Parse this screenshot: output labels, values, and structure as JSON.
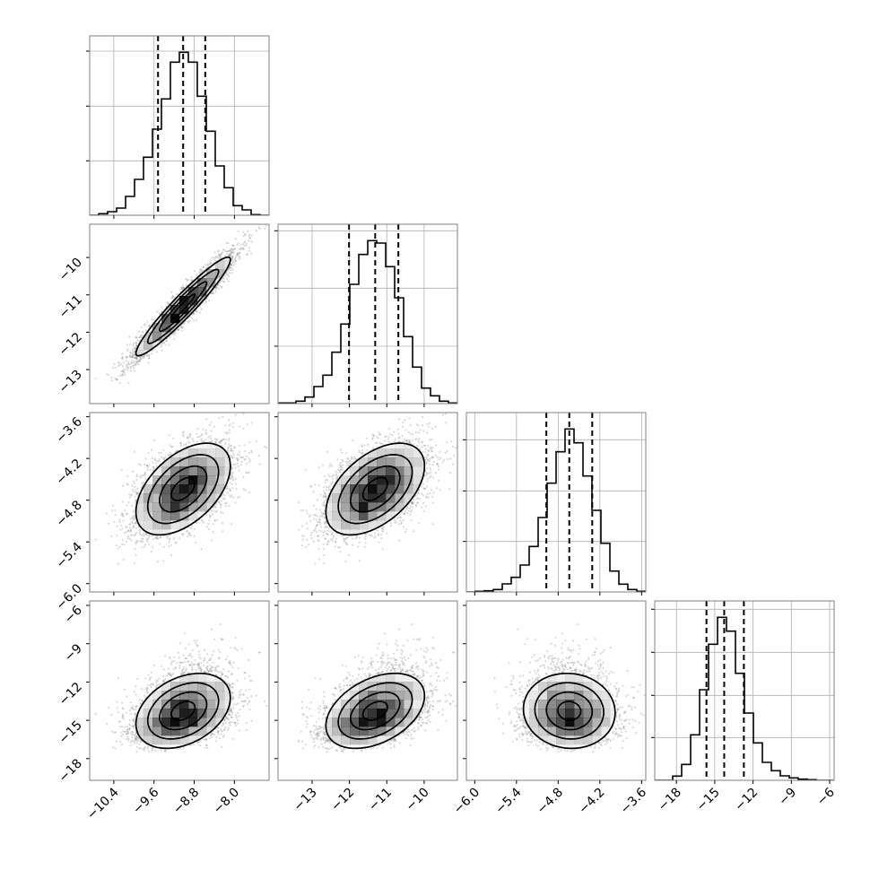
{
  "chart_data": {
    "type": "corner",
    "title": "",
    "n_samples": 4000,
    "hist_ylim": [
      0,
      600
    ],
    "contour_levels_sigma": [
      0.5,
      1.0,
      1.5,
      2.0
    ],
    "quantiles_levels": [
      0.16,
      0.5,
      0.84
    ],
    "correlations": [
      [
        1.0,
        0.95,
        0.5,
        0.35
      ],
      [
        0.95,
        1.0,
        0.5,
        0.4
      ],
      [
        0.5,
        0.5,
        1.0,
        -0.05
      ],
      [
        0.35,
        0.4,
        -0.05,
        1.0
      ]
    ],
    "colors": {
      "hist": "#000000",
      "points": "#808080",
      "density": "#000000",
      "frame": "#808080",
      "grid": "#b0b0b0"
    },
    "parameters": [
      {
        "range": [
          -10.88,
          -7.31
        ],
        "mean": -9.02,
        "std": 0.47,
        "skew": 0,
        "ticks": [
          -10.4,
          -9.6,
          -8.8,
          -8.0
        ],
        "tick_labels": [
          "−10.4",
          "−9.6",
          "−8.8",
          "−8.0"
        ],
        "quantiles": [
          -9.52,
          -9.02,
          -8.58
        ],
        "hist": [
          0,
          5,
          12,
          24,
          63,
          120,
          194,
          288,
          389,
          512,
          545,
          512,
          398,
          281,
          165,
          92,
          32,
          18,
          2,
          0
        ],
        "hist_yticks": [
          182,
          365,
          549
        ]
      },
      {
        "range": [
          -13.91,
          -9.11
        ],
        "mean": -11.31,
        "std": 0.66,
        "skew": 0,
        "ticks": [
          -13,
          -12,
          -11,
          -10
        ],
        "tick_labels": [
          "−13",
          "−12",
          "−11",
          "−10"
        ],
        "quantiles": [
          -12.01,
          -11.31,
          -10.69
        ],
        "hist": [
          2,
          2,
          8,
          22,
          57,
          95,
          172,
          266,
          399,
          499,
          545,
          537,
          458,
          354,
          224,
          122,
          52,
          26,
          8,
          2
        ],
        "hist_yticks": [
          192,
          386,
          578
        ]
      },
      {
        "range": [
          -6.12,
          -3.54
        ],
        "mean": -4.64,
        "std": 0.33,
        "skew": 0,
        "ticks": [
          -6.0,
          -5.4,
          -4.8,
          -4.2,
          -3.6
        ],
        "tick_labels": [
          "−6.0",
          "−5.4",
          "−4.8",
          "−4.2",
          "−3.6"
        ],
        "quantiles": [
          -4.97,
          -4.64,
          -4.31
        ],
        "hist": [
          0,
          2,
          4,
          8,
          27,
          49,
          90,
          152,
          249,
          364,
          469,
          545,
          499,
          388,
          273,
          163,
          70,
          26,
          8,
          2
        ],
        "hist_yticks": [
          169,
          338,
          509
        ]
      },
      {
        "range": [
          -19.7,
          -5.65
        ],
        "mean": -14.26,
        "std": 1.47,
        "skew": 0.12,
        "ticks": [
          -18,
          -15,
          -12,
          -9,
          -6
        ],
        "tick_labels": [
          "−18",
          "−15",
          "−12",
          "−9",
          "−6"
        ],
        "quantiles": [
          -15.65,
          -14.26,
          -12.72
        ],
        "hist": [
          0,
          0,
          14,
          53,
          152,
          303,
          455,
          545,
          499,
          358,
          225,
          125,
          60,
          32,
          15,
          8,
          4,
          2,
          0,
          0
        ],
        "hist_yticks": [
          143,
          284,
          428,
          572
        ]
      }
    ]
  }
}
